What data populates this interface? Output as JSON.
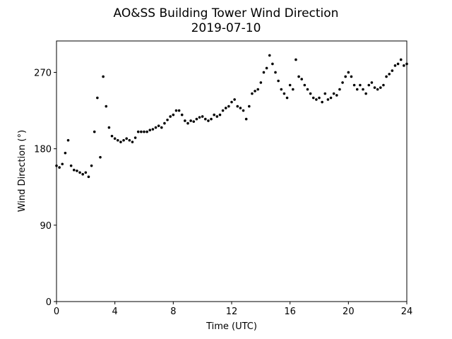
{
  "chart_data": {
    "type": "scatter",
    "title": "AO&SS Building Tower Wind Direction",
    "subtitle": "2019-07-10",
    "x_label": "Time (UTC)",
    "y_label": "Wind Direction (°)",
    "color": "#000000",
    "grid": false,
    "xlim": [
      0,
      24
    ],
    "ylim": [
      0,
      307
    ],
    "xticks": [
      0,
      4,
      8,
      12,
      16,
      20,
      24
    ],
    "yticks": [
      0,
      90,
      180,
      270
    ],
    "x": [
      0.0,
      0.2,
      0.4,
      0.6,
      0.8,
      1.0,
      1.2,
      1.4,
      1.6,
      1.8,
      2.0,
      2.2,
      2.4,
      2.6,
      2.8,
      3.0,
      3.2,
      3.4,
      3.6,
      3.8,
      4.0,
      4.2,
      4.4,
      4.6,
      4.8,
      5.0,
      5.2,
      5.4,
      5.6,
      5.8,
      6.0,
      6.2,
      6.4,
      6.6,
      6.8,
      7.0,
      7.2,
      7.4,
      7.6,
      7.8,
      8.0,
      8.2,
      8.4,
      8.6,
      8.8,
      9.0,
      9.2,
      9.4,
      9.6,
      9.8,
      10.0,
      10.2,
      10.4,
      10.6,
      10.8,
      11.0,
      11.2,
      11.4,
      11.6,
      11.8,
      12.0,
      12.2,
      12.4,
      12.6,
      12.8,
      13.0,
      13.2,
      13.4,
      13.6,
      13.8,
      14.0,
      14.2,
      14.4,
      14.6,
      14.8,
      15.0,
      15.2,
      15.4,
      15.6,
      15.8,
      16.0,
      16.2,
      16.4,
      16.6,
      16.8,
      17.0,
      17.2,
      17.4,
      17.6,
      17.8,
      18.0,
      18.2,
      18.4,
      18.6,
      18.8,
      19.0,
      19.2,
      19.4,
      19.6,
      19.8,
      20.0,
      20.2,
      20.4,
      20.6,
      20.8,
      21.0,
      21.2,
      21.4,
      21.6,
      21.8,
      22.0,
      22.2,
      22.4,
      22.6,
      22.8,
      23.0,
      23.2,
      23.4,
      23.6,
      23.8,
      24.0
    ],
    "values": [
      160,
      158,
      162,
      175,
      190,
      160,
      155,
      154,
      152,
      150,
      152,
      147,
      160,
      200,
      240,
      170,
      265,
      230,
      205,
      195,
      192,
      190,
      188,
      190,
      192,
      190,
      188,
      193,
      200,
      200,
      200,
      200,
      202,
      203,
      205,
      207,
      205,
      210,
      214,
      218,
      220,
      225,
      225,
      220,
      213,
      210,
      213,
      212,
      215,
      217,
      218,
      215,
      213,
      215,
      220,
      218,
      220,
      225,
      228,
      230,
      235,
      238,
      230,
      228,
      225,
      215,
      230,
      245,
      248,
      250,
      258,
      270,
      275,
      290,
      280,
      270,
      260,
      250,
      245,
      240,
      255,
      250,
      285,
      265,
      262,
      255,
      250,
      245,
      240,
      238,
      240,
      235,
      245,
      238,
      240,
      245,
      243,
      250,
      258,
      265,
      270,
      265,
      255,
      250,
      255,
      250,
      245,
      255,
      258,
      252,
      250,
      252,
      255,
      265,
      268,
      272,
      278,
      280,
      285,
      278,
      280
    ]
  }
}
